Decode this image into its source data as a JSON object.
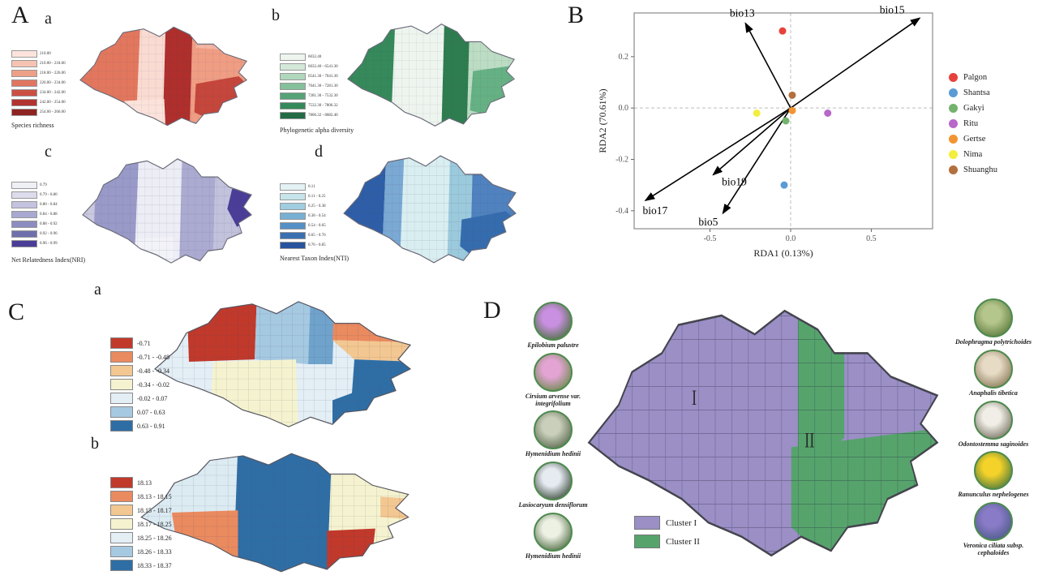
{
  "figure": {
    "panels": [
      "A",
      "B",
      "C",
      "D"
    ]
  },
  "chart_data": [
    {
      "id": "rda-biplot",
      "type": "scatter",
      "title": "",
      "xlabel": "RDA1 (0.13%)",
      "ylabel": "RDA2 (70.61%)",
      "xlim": [
        -0.97,
        0.88
      ],
      "ylim": [
        -0.47,
        0.37
      ],
      "xticks": [
        -0.5,
        0.0,
        0.5
      ],
      "yticks": [
        -0.4,
        -0.2,
        0.0,
        0.2
      ],
      "grid": "dashed zero lines",
      "legend_position": "right",
      "arrows": [
        {
          "label": "bio13",
          "x": -0.28,
          "y": 0.33,
          "lx": -4,
          "ly": -8
        },
        {
          "label": "bio15",
          "x": 0.8,
          "y": 0.35,
          "lx": -34,
          "ly": -6
        },
        {
          "label": "bio17",
          "x": -0.9,
          "y": -0.36,
          "lx": 12,
          "ly": 17
        },
        {
          "label": "bio19",
          "x": -0.48,
          "y": -0.26,
          "lx": 26,
          "ly": 13
        },
        {
          "label": "bio5",
          "x": -0.42,
          "y": -0.41,
          "lx": -18,
          "ly": 15
        }
      ],
      "points": [
        {
          "site": "Palgon",
          "x": -0.05,
          "y": 0.3,
          "color": "#e8413c"
        },
        {
          "site": "Shantsa",
          "x": -0.04,
          "y": -0.3,
          "color": "#5b9bd5"
        },
        {
          "site": "Gakyi",
          "x": -0.03,
          "y": -0.05,
          "color": "#74b36e"
        },
        {
          "site": "Ritu",
          "x": 0.23,
          "y": -0.02,
          "color": "#b868c8"
        },
        {
          "site": "Gertse",
          "x": 0.01,
          "y": -0.01,
          "color": "#f29530"
        },
        {
          "site": "Nima",
          "x": -0.21,
          "y": -0.02,
          "color": "#f2ee3e"
        },
        {
          "site": "Shuanghu",
          "x": 0.01,
          "y": 0.05,
          "color": "#b3703d"
        }
      ],
      "legend": [
        {
          "label": "Palgon",
          "color": "#e8413c"
        },
        {
          "label": "Shantsa",
          "color": "#5b9bd5"
        },
        {
          "label": "Gakyi",
          "color": "#74b36e"
        },
        {
          "label": "Ritu",
          "color": "#b868c8"
        },
        {
          "label": "Gertse",
          "color": "#f29530"
        },
        {
          "label": "Nima",
          "color": "#f2ee3e"
        },
        {
          "label": "Shuanghu",
          "color": "#b3703d"
        }
      ]
    },
    {
      "id": "map-species-richness",
      "type": "choropleth",
      "panel": "A",
      "tag": "a",
      "title": "Species richness",
      "classes": [
        {
          "label": "210.00",
          "color": "#fce4dc"
        },
        {
          "label": "210.00 - 218.00",
          "color": "#f6c3b2"
        },
        {
          "label": "218.00 - 226.00",
          "color": "#ee9f87"
        },
        {
          "label": "226.00 - 234.00",
          "color": "#e07660"
        },
        {
          "label": "234.00 - 242.00",
          "color": "#cc4f44"
        },
        {
          "label": "242.00 - 254.00",
          "color": "#b23430"
        },
        {
          "label": "254.00 - 266.00",
          "color": "#8f2322"
        }
      ]
    },
    {
      "id": "map-phylo-alpha",
      "type": "choropleth",
      "panel": "A",
      "tag": "b",
      "title": "Phylogenetic alpha diversity",
      "classes": [
        {
          "label": "6032.40",
          "color": "#edf5ee"
        },
        {
          "label": "6032.40 - 6541.30",
          "color": "#d3e8d8"
        },
        {
          "label": "6541.30 - 7041.30",
          "color": "#b0d7bc"
        },
        {
          "label": "7041.30 - 7281.30",
          "color": "#84c09a"
        },
        {
          "label": "7281.30 - 7532.30",
          "color": "#55a376"
        },
        {
          "label": "7532.30 - 7806.32",
          "color": "#35895a"
        },
        {
          "label": "7806.32 - 8082.40",
          "color": "#226b44"
        }
      ]
    },
    {
      "id": "map-nri",
      "type": "choropleth",
      "panel": "A",
      "tag": "c",
      "title": "Net Relatedness Index(NRI)",
      "classes": [
        {
          "label": "0.79",
          "color": "#efeff6"
        },
        {
          "label": "0.79 - 0.80",
          "color": "#dcdcec"
        },
        {
          "label": "0.80 - 0.84",
          "color": "#c3c3df"
        },
        {
          "label": "0.84 - 0.88",
          "color": "#a8a8d0"
        },
        {
          "label": "0.88 - 0.92",
          "color": "#8c8cc0"
        },
        {
          "label": "0.92 - 0.96",
          "color": "#6f6fae"
        },
        {
          "label": "0.96 - 0.99",
          "color": "#4a3d98"
        }
      ]
    },
    {
      "id": "map-nti",
      "type": "choropleth",
      "panel": "A",
      "tag": "d",
      "title": "Nearest Taxon Index(NTI)",
      "classes": [
        {
          "label": "0.11",
          "color": "#e4f2f4"
        },
        {
          "label": "0.11 - 0.25",
          "color": "#c6e4ea"
        },
        {
          "label": "0.25 - 0.38",
          "color": "#a0cde0"
        },
        {
          "label": "0.38 - 0.54",
          "color": "#78b0d4"
        },
        {
          "label": "0.54 - 0.65",
          "color": "#5490c6"
        },
        {
          "label": "0.65 - 0.76",
          "color": "#3a70b2"
        },
        {
          "label": "0.76 - 0.85",
          "color": "#27539e"
        }
      ]
    },
    {
      "id": "map-C-a",
      "type": "choropleth",
      "panel": "C",
      "tag": "a",
      "title": "",
      "classes": [
        {
          "label": "-0.71",
          "color": "#c0392b"
        },
        {
          "label": "-0.71 - -0.48",
          "color": "#ea8a5f"
        },
        {
          "label": "-0.48 - -0.34",
          "color": "#f3c791"
        },
        {
          "label": "-0.34 - -0.02",
          "color": "#f5f3cf"
        },
        {
          "label": "-0.02 - 0.07",
          "color": "#e3eef5"
        },
        {
          "label": "0.07 - 0.63",
          "color": "#a6c9e2"
        },
        {
          "label": "0.63 - 0.91",
          "color": "#2f6ea5"
        }
      ]
    },
    {
      "id": "map-C-b",
      "type": "choropleth",
      "panel": "C",
      "tag": "b",
      "title": "",
      "classes": [
        {
          "label": "18.13",
          "color": "#c0392b"
        },
        {
          "label": "18.13 - 18.15",
          "color": "#ea8a5f"
        },
        {
          "label": "18.15 - 18.17",
          "color": "#f3c791"
        },
        {
          "label": "18.17 - 18.25",
          "color": "#f5f3cf"
        },
        {
          "label": "18.25 - 18.26",
          "color": "#e3eef5"
        },
        {
          "label": "18.26 - 18.33",
          "color": "#a6c9e2"
        },
        {
          "label": "18.33 - 18.37",
          "color": "#2f6ea5"
        }
      ]
    },
    {
      "id": "map-clusters",
      "type": "choropleth",
      "panel": "D",
      "title": "",
      "legend": [
        {
          "label": "Cluster I",
          "color": "#9b8fc6"
        },
        {
          "label": "Cluster II",
          "color": "#56a46c"
        }
      ],
      "region_labels": [
        "I",
        "II"
      ],
      "species_left": [
        {
          "name": "Epilobium palustre",
          "photo": "purple-flower-photo",
          "c1": "#c98fe0",
          "c2": "#49703f"
        },
        {
          "name": "Cirsium arvense var. integrifolium",
          "photo": "pink-thistle-photo",
          "c1": "#e3a4d4",
          "c2": "#6b8a4c"
        },
        {
          "name": "Hymenidium hedinii",
          "photo": "grey-green-cluster-photo",
          "c1": "#c9cfba",
          "c2": "#59684e"
        },
        {
          "name": "Lasiocaryum densiflorum",
          "photo": "white-flowers-photo",
          "c1": "#e6ebf2",
          "c2": "#3c4a3c"
        },
        {
          "name": "Hymenidium hedinii",
          "photo": "white-cluster-photo",
          "c1": "#edf1e4",
          "c2": "#4d6b42"
        }
      ],
      "species_right": [
        {
          "name": "Dolophragma polytrichoides",
          "photo": "green-cushion-photo",
          "c1": "#b5c68c",
          "c2": "#5b7a3c"
        },
        {
          "name": "Anaphalis tibetica",
          "photo": "white-tan-flower-photo",
          "c1": "#e7dbc6",
          "c2": "#8a7a58"
        },
        {
          "name": "Odontostemma saginoides",
          "photo": "white-flower-photo",
          "c1": "#f0eee6",
          "c2": "#787264"
        },
        {
          "name": "Ranunculus nephelogenes",
          "photo": "yellow-flower-photo",
          "c1": "#f4d229",
          "c2": "#4c7a3c"
        },
        {
          "name": "Veronica ciliata subsp. cephaloides",
          "photo": "blue-flower-photo",
          "c1": "#8a7bc8",
          "c2": "#4b5a88"
        }
      ]
    }
  ]
}
